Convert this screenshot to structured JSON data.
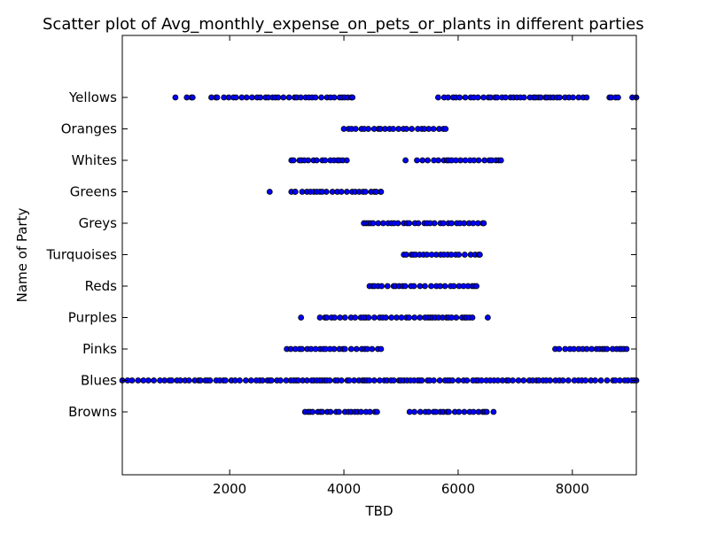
{
  "chart_data": {
    "type": "scatter",
    "title": "Scatter plot of Avg_monthly_expense_on_pets_or_plants in different parties",
    "xlabel": "TBD",
    "ylabel": "Name of Party",
    "xlim": [
      120,
      9120
    ],
    "x_ticks": [
      2000,
      4000,
      6000,
      8000
    ],
    "categories": [
      "Browns",
      "Blues",
      "Pinks",
      "Purples",
      "Reds",
      "Turquoises",
      "Greys",
      "Greens",
      "Whites",
      "Oranges",
      "Yellows"
    ],
    "grid": false,
    "marker_color": "#0000ff",
    "marker_edge": "#000000",
    "series": [
      {
        "category": "Yellows",
        "ranges": [
          [
            1050,
            1050
          ],
          [
            1250,
            1350
          ],
          [
            1680,
            1780
          ],
          [
            1900,
            4150
          ],
          [
            5650,
            8250
          ],
          [
            8650,
            8800
          ],
          [
            9050,
            9120
          ]
        ]
      },
      {
        "category": "Oranges",
        "ranges": [
          [
            4000,
            5780
          ]
        ]
      },
      {
        "category": "Whites",
        "ranges": [
          [
            3080,
            4050
          ],
          [
            5080,
            5100
          ],
          [
            5280,
            6750
          ]
        ]
      },
      {
        "category": "Greens",
        "ranges": [
          [
            2700,
            2700
          ],
          [
            3080,
            3150
          ],
          [
            3270,
            4650
          ]
        ]
      },
      {
        "category": "Greys",
        "ranges": [
          [
            4350,
            6450
          ]
        ]
      },
      {
        "category": "Turquoises",
        "ranges": [
          [
            5050,
            6380
          ]
        ]
      },
      {
        "category": "Reds",
        "ranges": [
          [
            4450,
            6320
          ]
        ]
      },
      {
        "category": "Purples",
        "ranges": [
          [
            3250,
            3250
          ],
          [
            3580,
            6250
          ],
          [
            6520,
            6520
          ]
        ]
      },
      {
        "category": "Pinks",
        "ranges": [
          [
            3000,
            4650
          ],
          [
            7700,
            8950
          ]
        ]
      },
      {
        "category": "Blues",
        "ranges": [
          [
            120,
            9120
          ]
        ]
      },
      {
        "category": "Browns",
        "ranges": [
          [
            3320,
            4580
          ],
          [
            5150,
            6500
          ],
          [
            6620,
            6620
          ]
        ]
      }
    ]
  }
}
